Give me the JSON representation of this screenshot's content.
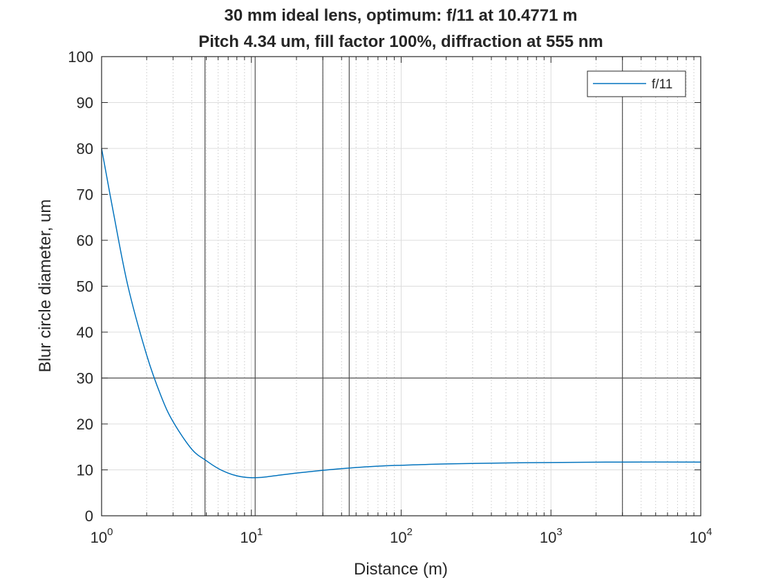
{
  "chart_data": {
    "type": "line",
    "title": "30 mm ideal lens, optimum: f/11 at 10.4771 m",
    "subtitle": "Pitch 4.34 um, fill factor 100%, diffraction at 555 nm",
    "xlabel": "Distance (m)",
    "ylabel": "Blur circle diameter, um",
    "xscale": "log",
    "xlim": [
      1,
      10000
    ],
    "ylim": [
      0,
      100
    ],
    "xticks": [
      {
        "value": 1,
        "base": "10",
        "exp": "0"
      },
      {
        "value": 10,
        "base": "10",
        "exp": "1"
      },
      {
        "value": 100,
        "base": "10",
        "exp": "2"
      },
      {
        "value": 1000,
        "base": "10",
        "exp": "3"
      },
      {
        "value": 10000,
        "base": "10",
        "exp": "4"
      }
    ],
    "yticks": [
      0,
      10,
      20,
      30,
      40,
      50,
      60,
      70,
      80,
      90,
      100
    ],
    "grid": "on",
    "legend_position": "top-right",
    "series": [
      {
        "name": "f/11",
        "color": "#0072BD",
        "x": [
          1,
          1.2,
          1.5,
          2,
          2.5,
          3,
          4,
          5,
          6,
          7,
          8,
          9,
          10,
          10.5,
          12,
          15,
          20,
          30,
          45,
          70,
          100,
          200,
          500,
          1000,
          3000,
          10000
        ],
        "y": [
          80,
          66,
          50,
          35,
          26,
          20.5,
          14.5,
          12,
          10.3,
          9.3,
          8.7,
          8.4,
          8.3,
          8.3,
          8.4,
          8.8,
          9.3,
          9.9,
          10.4,
          10.8,
          11.0,
          11.3,
          11.5,
          11.6,
          11.7,
          11.7
        ]
      }
    ],
    "reference_lines": {
      "vertical_x": [
        4.9,
        10.6,
        30,
        45,
        3000
      ],
      "horizontal_y": [
        30
      ],
      "color": "#4d4d4d"
    }
  }
}
